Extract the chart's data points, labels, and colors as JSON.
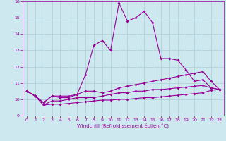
{
  "xlabel": "Windchill (Refroidissement éolien,°C)",
  "x": [
    0,
    1,
    2,
    3,
    4,
    5,
    6,
    7,
    8,
    9,
    10,
    11,
    12,
    13,
    14,
    15,
    16,
    17,
    18,
    19,
    20,
    21,
    22,
    23
  ],
  "line1": [
    10.5,
    10.2,
    9.8,
    10.2,
    10.1,
    10.1,
    10.3,
    11.5,
    13.3,
    13.6,
    13.0,
    15.9,
    14.8,
    15.0,
    15.4,
    14.7,
    12.5,
    12.5,
    12.4,
    11.8,
    11.1,
    11.2,
    10.7,
    10.6
  ],
  "line2": [
    10.5,
    10.2,
    9.8,
    10.2,
    10.2,
    10.2,
    10.3,
    10.5,
    10.5,
    10.4,
    10.5,
    10.7,
    10.8,
    10.9,
    11.0,
    11.1,
    11.2,
    11.3,
    11.4,
    11.5,
    11.6,
    11.7,
    11.1,
    10.6
  ],
  "line3": [
    10.5,
    10.2,
    9.65,
    9.9,
    9.9,
    10.0,
    10.1,
    10.1,
    10.1,
    10.2,
    10.3,
    10.4,
    10.4,
    10.5,
    10.5,
    10.6,
    10.6,
    10.65,
    10.7,
    10.75,
    10.8,
    10.85,
    10.7,
    10.6
  ],
  "line4": [
    10.5,
    10.2,
    9.65,
    9.7,
    9.7,
    9.75,
    9.8,
    9.85,
    9.9,
    9.95,
    9.95,
    10.0,
    10.0,
    10.05,
    10.1,
    10.1,
    10.15,
    10.2,
    10.25,
    10.3,
    10.35,
    10.4,
    10.55,
    10.6
  ],
  "line_color": "#990099",
  "bg_color": "#cde8ef",
  "grid_color": "#aecdd6",
  "ylim": [
    9.0,
    16.0
  ],
  "xlim": [
    -0.5,
    23.5
  ],
  "yticks": [
    9,
    10,
    11,
    12,
    13,
    14,
    15,
    16
  ],
  "xticks": [
    0,
    1,
    2,
    3,
    4,
    5,
    6,
    7,
    8,
    9,
    10,
    11,
    12,
    13,
    14,
    15,
    16,
    17,
    18,
    19,
    20,
    21,
    22,
    23
  ],
  "tick_fontsize": 4.5,
  "xlabel_fontsize": 5.0,
  "marker_size": 2.0,
  "linewidth": 0.8
}
